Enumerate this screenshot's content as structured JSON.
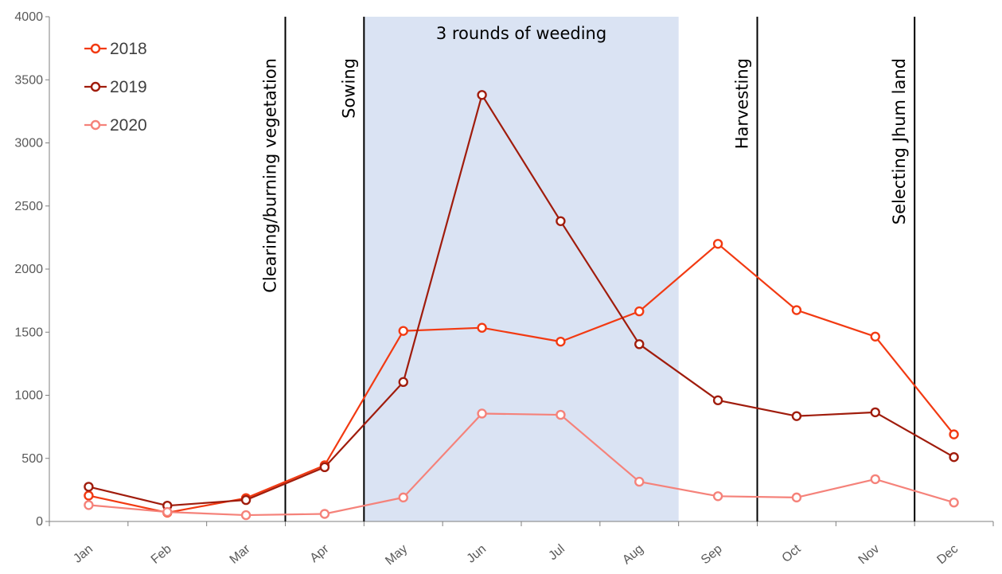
{
  "chart_data": {
    "type": "line",
    "categories": [
      "Jan",
      "Feb",
      "Mar",
      "Apr",
      "May",
      "Jun",
      "Jul",
      "Aug",
      "Sep",
      "Oct",
      "Nov",
      "Dec"
    ],
    "series": [
      {
        "name": "2018",
        "color": "#f23a12",
        "values": [
          205,
          70,
          185,
          445,
          1510,
          1535,
          1425,
          1665,
          2200,
          1675,
          1465,
          690
        ]
      },
      {
        "name": "2019",
        "color": "#a01c0c",
        "values": [
          275,
          125,
          170,
          430,
          1105,
          3380,
          2380,
          1405,
          960,
          835,
          865,
          510
        ]
      },
      {
        "name": "2020",
        "color": "#f5827a",
        "values": [
          130,
          75,
          50,
          60,
          190,
          855,
          845,
          315,
          200,
          190,
          335,
          150
        ]
      }
    ],
    "ylim": [
      0,
      4000
    ],
    "yticks": [
      0,
      500,
      1000,
      1500,
      2000,
      2500,
      3000,
      3500,
      4000
    ],
    "grid": false,
    "legend_position": "top-left",
    "shaded_region": {
      "label": "3 rounds of weeding",
      "from_boundary": 4,
      "to_boundary": 8,
      "color": "#dae3f3"
    },
    "annotations": [
      {
        "label": "Clearing/burning vegetation",
        "boundary": 3
      },
      {
        "label": "Sowing",
        "boundary": 4
      },
      {
        "label": "Harvesting",
        "boundary": 9
      },
      {
        "label": "Selecting Jhum land",
        "boundary": 11
      }
    ],
    "xlabel": "",
    "ylabel": "",
    "title": ""
  }
}
